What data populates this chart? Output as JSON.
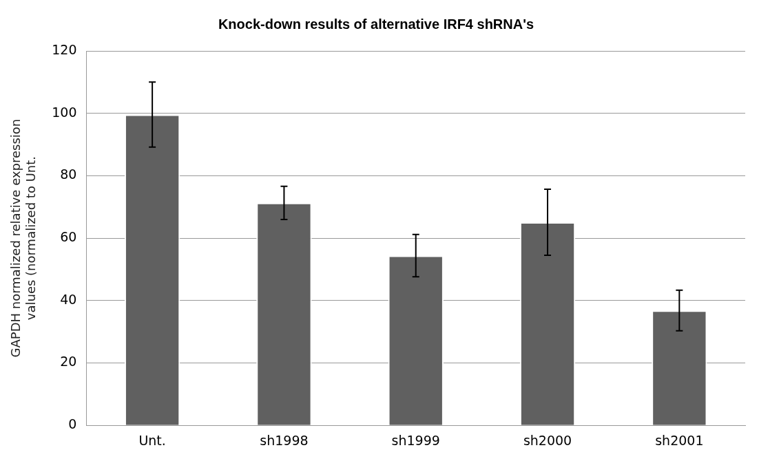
{
  "chart_data": {
    "type": "bar",
    "title": "Knock-down results of alternative IRF4 shRNA's",
    "ylabel": "GAPDH normalized relative expression values (normalized to Unt.",
    "categories": [
      "Unt.",
      "sh1998",
      "sh1999",
      "sh2000",
      "sh2001"
    ],
    "values": [
      99.6,
      71.3,
      54.4,
      65.1,
      36.8
    ],
    "errors": [
      10.4,
      5.3,
      6.8,
      10.6,
      6.5
    ],
    "color": "#606060",
    "ylim": [
      0,
      120
    ],
    "yticks": [
      0,
      20,
      40,
      60,
      80,
      100,
      120
    ],
    "grid": "y",
    "legend": false
  }
}
